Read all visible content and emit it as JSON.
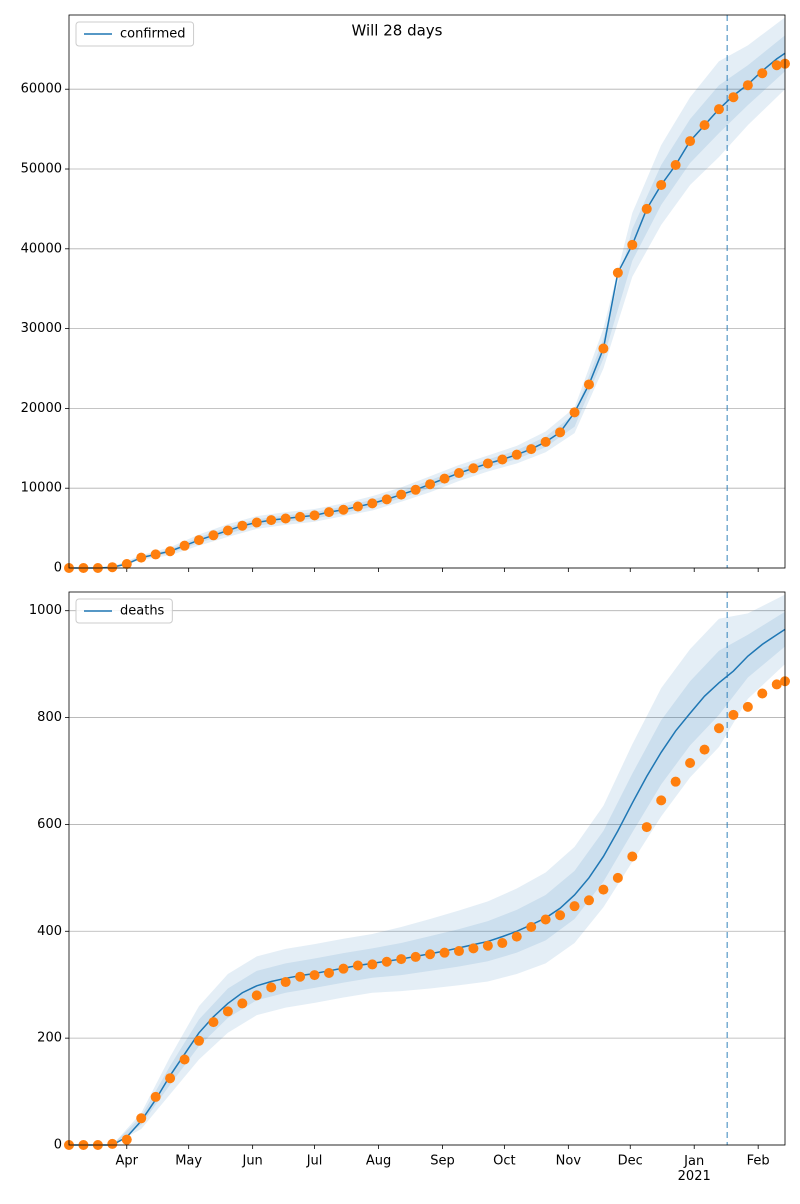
{
  "chart_data": [
    {
      "type": "line",
      "title": "Will 28 days",
      "x": [
        63,
        70,
        77,
        84,
        91,
        98,
        105,
        112,
        119,
        126,
        133,
        140,
        147,
        154,
        161,
        168,
        175,
        182,
        189,
        196,
        203,
        210,
        217,
        224,
        231,
        238,
        245,
        252,
        259,
        266,
        273,
        280,
        287,
        294,
        301,
        308,
        315,
        322,
        329,
        336,
        343,
        350,
        357,
        364,
        371,
        378,
        385,
        392,
        399,
        406,
        410
      ],
      "series": [
        {
          "name": "confirmed",
          "color": "#1f77b4",
          "values": [
            0,
            0,
            0,
            100,
            500,
            1300,
            1700,
            2100,
            2800,
            3500,
            4100,
            4700,
            5300,
            5700,
            6000,
            6200,
            6400,
            6600,
            7000,
            7300,
            7700,
            8100,
            8600,
            9200,
            9800,
            10500,
            11200,
            11900,
            12500,
            13100,
            13600,
            14200,
            14900,
            15800,
            17000,
            19500,
            23000,
            27500,
            37000,
            40500,
            45000,
            48000,
            50500,
            53500,
            55500,
            57500,
            59200,
            60600,
            62300,
            63800,
            64500
          ]
        }
      ],
      "observed": {
        "color": "#ff7f0e",
        "values": [
          0,
          0,
          0,
          100,
          500,
          1300,
          1700,
          2100,
          2800,
          3500,
          4100,
          4700,
          5300,
          5700,
          6000,
          6200,
          6400,
          6600,
          7000,
          7300,
          7700,
          8100,
          8600,
          9200,
          9800,
          10500,
          11200,
          11900,
          12500,
          13100,
          13600,
          14200,
          14900,
          15800,
          17000,
          19500,
          23000,
          27500,
          37000,
          40500,
          45000,
          48000,
          50500,
          53500,
          55500,
          57500,
          59000,
          60500,
          62000,
          63000,
          63200
        ]
      },
      "bands": {
        "color": "#1f77b4",
        "x": [
          84,
          98,
          112,
          126,
          140,
          154,
          168,
          182,
          196,
          210,
          224,
          238,
          252,
          266,
          280,
          294,
          308,
          322,
          336,
          350,
          364,
          378,
          392,
          410
        ],
        "ranges": [
          {
            "lower": [
              50,
              1000,
              1600,
              2800,
              3900,
              4900,
              5400,
              5800,
              6500,
              7200,
              8300,
              9500,
              10900,
              12100,
              13100,
              14500,
              16900,
              25000,
              36500,
              43000,
              48000,
              51500,
              55500,
              60000
            ],
            "upper": [
              150,
              1600,
              2600,
              4200,
              5500,
              6500,
              7000,
              7400,
              8100,
              9000,
              10100,
              11500,
              12900,
              14100,
              15300,
              17100,
              20100,
              30000,
              44500,
              53000,
              59000,
              63500,
              65500,
              69000
            ]
          },
          {
            "lower": [
              75,
              1150,
              1850,
              3150,
              4300,
              5300,
              5800,
              6200,
              6900,
              7650,
              8750,
              10000,
              11400,
              12600,
              13650,
              15150,
              17700,
              26250,
              38500,
              45500,
              50750,
              54500,
              58000,
              62250
            ],
            "upper": [
              125,
              1450,
              2350,
              3850,
              5100,
              6100,
              6600,
              7000,
              7700,
              8550,
              9650,
              11000,
              12400,
              13600,
              14750,
              16450,
              19300,
              28750,
              42500,
              50500,
              56250,
              60500,
              63000,
              66750
            ]
          }
        ]
      },
      "xlim": [
        63,
        410
      ],
      "xticks": [
        91,
        121,
        152,
        182,
        213,
        244,
        274,
        305,
        335,
        366,
        397
      ],
      "ylim": [
        0,
        69300
      ],
      "yticks": [
        0,
        10000,
        20000,
        30000,
        40000,
        50000,
        60000
      ],
      "grid": true,
      "legend": "upper left",
      "vline": 382
    },
    {
      "type": "line",
      "x": [
        63,
        70,
        77,
        84,
        91,
        98,
        105,
        112,
        119,
        126,
        133,
        140,
        147,
        154,
        161,
        168,
        175,
        182,
        189,
        196,
        203,
        210,
        217,
        224,
        231,
        238,
        245,
        252,
        259,
        266,
        273,
        280,
        287,
        294,
        301,
        308,
        315,
        322,
        329,
        336,
        343,
        350,
        357,
        364,
        371,
        378,
        385,
        392,
        399,
        406,
        410
      ],
      "series": [
        {
          "name": "deaths",
          "color": "#1f77b4",
          "values": [
            0,
            0,
            0,
            0,
            15,
            45,
            85,
            130,
            170,
            210,
            240,
            265,
            285,
            298,
            306,
            312,
            317,
            321,
            326,
            331,
            336,
            340,
            344,
            348,
            353,
            358,
            363,
            369,
            375,
            381,
            390,
            400,
            412,
            425,
            443,
            468,
            500,
            540,
            588,
            640,
            690,
            735,
            775,
            808,
            840,
            865,
            887,
            915,
            937,
            955,
            965
          ]
        }
      ],
      "observed": {
        "color": "#ff7f0e",
        "values": [
          0,
          0,
          0,
          2,
          10,
          50,
          90,
          125,
          160,
          195,
          230,
          250,
          265,
          280,
          295,
          305,
          315,
          318,
          322,
          330,
          336,
          338,
          343,
          348,
          352,
          357,
          360,
          363,
          368,
          373,
          378,
          390,
          408,
          422,
          430,
          447,
          458,
          478,
          500,
          540,
          595,
          645,
          680,
          715,
          740,
          780,
          805,
          820,
          845,
          862,
          868
        ]
      },
      "bands": {
        "color": "#1f77b4",
        "x": [
          84,
          98,
          112,
          126,
          140,
          154,
          168,
          182,
          196,
          210,
          224,
          238,
          252,
          266,
          280,
          294,
          308,
          322,
          336,
          350,
          364,
          378,
          392,
          410
        ],
        "ranges": [
          {
            "lower": [
              0,
              30,
              95,
              160,
              210,
              243,
              257,
              266,
              276,
              285,
              288,
              293,
              299,
              306,
              320,
              340,
              378,
              445,
              530,
              615,
              688,
              745,
              835,
              900
            ],
            "upper": [
              0,
              60,
              165,
              260,
              320,
              353,
              367,
              376,
              386,
              395,
              408,
              423,
              439,
              456,
              480,
              510,
              558,
              635,
              750,
              855,
              928,
              985,
              995,
              1030
            ]
          },
          {
            "lower": [
              0,
              38,
              113,
              185,
              238,
              271,
              285,
              294,
              304,
              313,
              318,
              326,
              334,
              344,
              360,
              383,
              423,
              493,
              585,
              675,
              748,
              805,
              875,
              933
            ],
            "upper": [
              0,
              53,
              148,
              235,
              293,
              326,
              340,
              349,
              359,
              368,
              378,
              391,
              404,
              419,
              440,
              468,
              513,
              588,
              695,
              795,
              868,
              925,
              955,
              998
            ]
          }
        ]
      },
      "xlim": [
        63,
        410
      ],
      "xticks": [
        {
          "value": 91,
          "label": "Apr"
        },
        {
          "value": 121,
          "label": "May"
        },
        {
          "value": 152,
          "label": "Jun"
        },
        {
          "value": 182,
          "label": "Jul"
        },
        {
          "value": 213,
          "label": "Aug"
        },
        {
          "value": 244,
          "label": "Sep"
        },
        {
          "value": 274,
          "label": "Oct"
        },
        {
          "value": 305,
          "label": "Nov"
        },
        {
          "value": 335,
          "label": "Dec"
        },
        {
          "value": 366,
          "label": "Jan\n2021"
        },
        {
          "value": 397,
          "label": "Feb"
        }
      ],
      "ylim": [
        0,
        1035
      ],
      "yticks": [
        0,
        200,
        400,
        600,
        800,
        1000
      ],
      "grid": true,
      "legend": "upper left",
      "vline": 382
    }
  ]
}
